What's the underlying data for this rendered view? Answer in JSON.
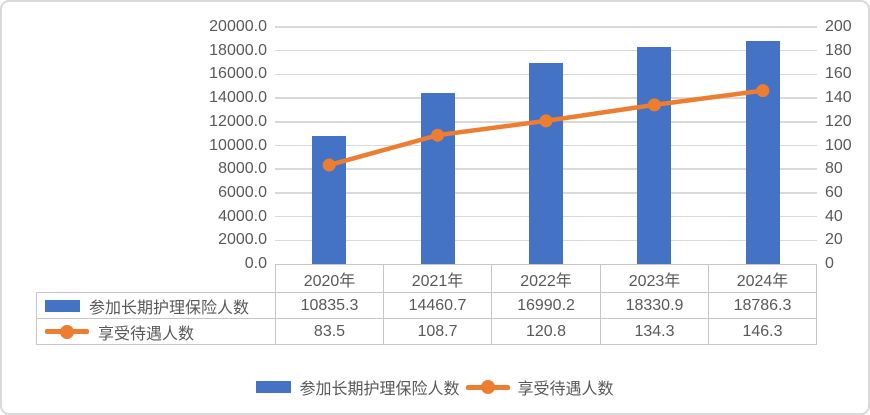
{
  "chart_data": {
    "type": "bar",
    "subtype": "combo-bar-line-dual-axis",
    "categories": [
      "2020年",
      "2021年",
      "2022年",
      "2023年",
      "2024年"
    ],
    "series": [
      {
        "name": "参加长期护理保险人数",
        "type": "bar",
        "axis": "left",
        "color": "#4472C4",
        "values": [
          10835.3,
          14460.7,
          16990.2,
          18330.9,
          18786.3
        ]
      },
      {
        "name": "享受待遇人数",
        "type": "line",
        "axis": "right",
        "color": "#ED7D31",
        "values": [
          83.5,
          108.7,
          120.8,
          134.3,
          146.3
        ]
      }
    ],
    "left_axis": {
      "min": 0,
      "max": 20000,
      "step": 2000,
      "tick_decimals": 1
    },
    "right_axis": {
      "min": 0,
      "max": 200,
      "step": 20,
      "tick_decimals": 0
    },
    "grid": true,
    "legend_position": "bottom",
    "data_table_shown": true,
    "title": ""
  },
  "colors": {
    "bar": "#4472C4",
    "line": "#ED7D31",
    "gridline": "#D9D9D9",
    "table_border": "#C6C6C6",
    "text": "#595959",
    "frame_border": "#D9D9D9",
    "background": "#FFFFFF"
  }
}
